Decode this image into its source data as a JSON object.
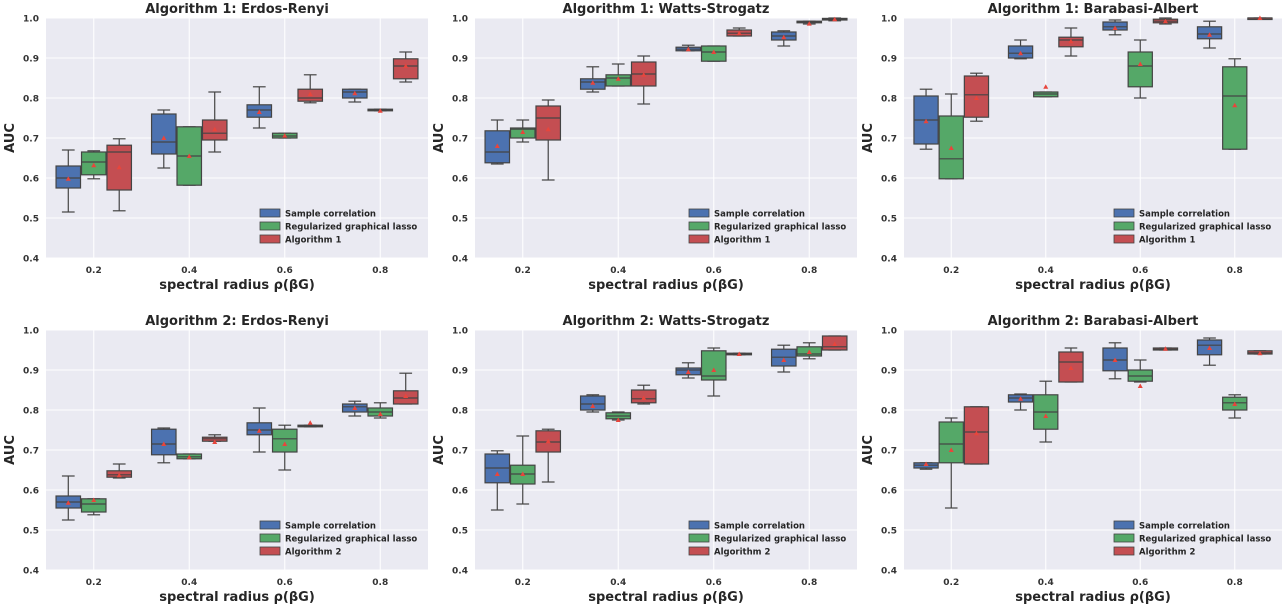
{
  "figure": {
    "colors": {
      "plot_bg": "#EAEAF2",
      "grid": "#FFFFFF",
      "mean_marker": "#E8453C",
      "whisker": "#4D4D4D",
      "series": [
        "#4C72B0",
        "#55A868",
        "#C44E52"
      ]
    }
  },
  "chart_data": [
    {
      "type": "box",
      "title": "Algorithm 1: Erdos-Renyi",
      "xlabel": "spectral radius ρ(βG)",
      "ylabel": "AUC",
      "categories": [
        "0.2",
        "0.4",
        "0.6",
        "0.8"
      ],
      "ylim": [
        0.4,
        1.0
      ],
      "yticks": [
        "0.4",
        "0.5",
        "0.6",
        "0.7",
        "0.8",
        "0.9",
        "1.0"
      ],
      "grid": true,
      "legend_position": "bottom-right",
      "series": [
        {
          "name": "Sample correlation",
          "boxes": [
            {
              "min": 0.515,
              "q1": 0.575,
              "median": 0.6,
              "q3": 0.63,
              "max": 0.67,
              "mean": 0.598
            },
            {
              "min": 0.625,
              "q1": 0.66,
              "median": 0.69,
              "q3": 0.76,
              "max": 0.77,
              "mean": 0.7
            },
            {
              "min": 0.725,
              "q1": 0.752,
              "median": 0.77,
              "q3": 0.783,
              "max": 0.828,
              "mean": 0.765
            },
            {
              "min": 0.79,
              "q1": 0.8,
              "median": 0.815,
              "q3": 0.822,
              "max": 0.822,
              "mean": 0.812
            }
          ]
        },
        {
          "name": "Regularized graphical lasso",
          "boxes": [
            {
              "min": 0.598,
              "q1": 0.608,
              "median": 0.64,
              "q3": 0.665,
              "max": 0.668,
              "mean": 0.632
            },
            {
              "min": 0.582,
              "q1": 0.582,
              "median": 0.655,
              "q3": 0.728,
              "max": 0.728,
              "mean": 0.655
            },
            {
              "min": 0.7,
              "q1": 0.7,
              "median": 0.705,
              "q3": 0.712,
              "max": 0.712,
              "mean": 0.706
            },
            {
              "min": 0.768,
              "q1": 0.768,
              "median": 0.77,
              "q3": 0.772,
              "max": 0.772,
              "mean": 0.768
            }
          ]
        },
        {
          "name": "Algorithm 1",
          "boxes": [
            {
              "min": 0.518,
              "q1": 0.57,
              "median": 0.665,
              "q3": 0.682,
              "max": 0.698,
              "mean": 0.627
            },
            {
              "min": 0.665,
              "q1": 0.695,
              "median": 0.712,
              "q3": 0.745,
              "max": 0.815,
              "mean": 0.722
            },
            {
              "min": 0.788,
              "q1": 0.792,
              "median": 0.8,
              "q3": 0.822,
              "max": 0.858,
              "mean": 0.81
            },
            {
              "min": 0.84,
              "q1": 0.848,
              "median": 0.88,
              "q3": 0.898,
              "max": 0.915,
              "mean": 0.88
            }
          ]
        }
      ]
    },
    {
      "type": "box",
      "title": "Algorithm 1: Watts-Strogatz",
      "xlabel": "spectral radius ρ(βG)",
      "ylabel": "AUC",
      "categories": [
        "0.2",
        "0.4",
        "0.6",
        "0.8"
      ],
      "ylim": [
        0.4,
        1.0
      ],
      "yticks": [
        "0.4",
        "0.5",
        "0.6",
        "0.7",
        "0.8",
        "0.9",
        "1.0"
      ],
      "grid": true,
      "legend_position": "bottom-right",
      "series": [
        {
          "name": "Sample correlation",
          "boxes": [
            {
              "min": 0.635,
              "q1": 0.638,
              "median": 0.665,
              "q3": 0.718,
              "max": 0.745,
              "mean": 0.68
            },
            {
              "min": 0.815,
              "q1": 0.822,
              "median": 0.84,
              "q3": 0.848,
              "max": 0.878,
              "mean": 0.838
            },
            {
              "min": 0.918,
              "q1": 0.918,
              "median": 0.922,
              "q3": 0.927,
              "max": 0.932,
              "mean": 0.922
            },
            {
              "min": 0.93,
              "q1": 0.945,
              "median": 0.955,
              "q3": 0.965,
              "max": 0.968,
              "mean": 0.952
            }
          ]
        },
        {
          "name": "Regularized graphical lasso",
          "boxes": [
            {
              "min": 0.69,
              "q1": 0.7,
              "median": 0.722,
              "q3": 0.725,
              "max": 0.745,
              "mean": 0.715
            },
            {
              "min": 0.83,
              "q1": 0.83,
              "median": 0.85,
              "q3": 0.858,
              "max": 0.885,
              "mean": 0.848
            },
            {
              "min": 0.892,
              "q1": 0.892,
              "median": 0.915,
              "q3": 0.93,
              "max": 0.93,
              "mean": 0.915
            },
            {
              "min": 0.985,
              "q1": 0.988,
              "median": 0.99,
              "q3": 0.992,
              "max": 0.992,
              "mean": 0.986
            }
          ]
        },
        {
          "name": "Algorithm 1",
          "boxes": [
            {
              "min": 0.595,
              "q1": 0.695,
              "median": 0.75,
              "q3": 0.78,
              "max": 0.795,
              "mean": 0.722
            },
            {
              "min": 0.785,
              "q1": 0.83,
              "median": 0.86,
              "q3": 0.89,
              "max": 0.905,
              "mean": 0.858
            },
            {
              "min": 0.955,
              "q1": 0.955,
              "median": 0.962,
              "q3": 0.97,
              "max": 0.975,
              "mean": 0.962
            },
            {
              "min": 0.993,
              "q1": 0.995,
              "median": 0.997,
              "q3": 0.999,
              "max": 1.0,
              "mean": 0.997
            }
          ]
        }
      ]
    },
    {
      "type": "box",
      "title": "Algorithm 1: Barabasi-Albert",
      "xlabel": "spectral radius ρ(βG)",
      "ylabel": "AUC",
      "categories": [
        "0.2",
        "0.4",
        "0.6",
        "0.8"
      ],
      "ylim": [
        0.4,
        1.0
      ],
      "yticks": [
        "0.4",
        "0.5",
        "0.6",
        "0.7",
        "0.8",
        "0.9",
        "1.0"
      ],
      "grid": true,
      "legend_position": "bottom-right",
      "series": [
        {
          "name": "Sample correlation",
          "boxes": [
            {
              "min": 0.672,
              "q1": 0.685,
              "median": 0.745,
              "q3": 0.805,
              "max": 0.822,
              "mean": 0.742
            },
            {
              "min": 0.898,
              "q1": 0.9,
              "median": 0.912,
              "q3": 0.93,
              "max": 0.945,
              "mean": 0.912
            },
            {
              "min": 0.958,
              "q1": 0.97,
              "median": 0.978,
              "q3": 0.99,
              "max": 0.995,
              "mean": 0.975
            },
            {
              "min": 0.925,
              "q1": 0.948,
              "median": 0.96,
              "q3": 0.978,
              "max": 0.992,
              "mean": 0.958
            }
          ]
        },
        {
          "name": "Regularized graphical lasso",
          "boxes": [
            {
              "min": 0.598,
              "q1": 0.598,
              "median": 0.648,
              "q3": 0.755,
              "max": 0.81,
              "mean": 0.675
            },
            {
              "min": 0.803,
              "q1": 0.803,
              "median": 0.81,
              "q3": 0.815,
              "max": 0.815,
              "mean": 0.828
            },
            {
              "min": 0.8,
              "q1": 0.828,
              "median": 0.88,
              "q3": 0.915,
              "max": 0.945,
              "mean": 0.885
            },
            {
              "min": 0.672,
              "q1": 0.672,
              "median": 0.805,
              "q3": 0.878,
              "max": 0.898,
              "mean": 0.782
            }
          ]
        },
        {
          "name": "Algorithm 1",
          "boxes": [
            {
              "min": 0.742,
              "q1": 0.752,
              "median": 0.808,
              "q3": 0.855,
              "max": 0.862,
              "mean": 0.8
            },
            {
              "min": 0.905,
              "q1": 0.928,
              "median": 0.945,
              "q3": 0.952,
              "max": 0.975,
              "mean": 0.942
            },
            {
              "min": 0.985,
              "q1": 0.988,
              "median": 0.992,
              "q3": 0.997,
              "max": 1.0,
              "mean": 0.992
            },
            {
              "min": 0.998,
              "q1": 0.999,
              "median": 1.0,
              "q3": 1.0,
              "max": 1.0,
              "mean": 1.0
            }
          ]
        }
      ]
    },
    {
      "type": "box",
      "title": "Algorithm 2: Erdos-Renyi",
      "xlabel": "spectral radius ρ(βG)",
      "ylabel": "AUC",
      "categories": [
        "0.2",
        "0.4",
        "0.6",
        "0.8"
      ],
      "ylim": [
        0.4,
        1.0
      ],
      "yticks": [
        "0.4",
        "0.5",
        "0.6",
        "0.7",
        "0.8",
        "0.9",
        "1.0"
      ],
      "grid": true,
      "legend_position": "bottom-right",
      "series": [
        {
          "name": "Sample correlation",
          "boxes": [
            {
              "min": 0.525,
              "q1": 0.555,
              "median": 0.57,
              "q3": 0.585,
              "max": 0.635,
              "mean": 0.568
            },
            {
              "min": 0.668,
              "q1": 0.688,
              "median": 0.715,
              "q3": 0.752,
              "max": 0.755,
              "mean": 0.715
            },
            {
              "min": 0.695,
              "q1": 0.738,
              "median": 0.75,
              "q3": 0.768,
              "max": 0.805,
              "mean": 0.748
            },
            {
              "min": 0.785,
              "q1": 0.795,
              "median": 0.808,
              "q3": 0.815,
              "max": 0.822,
              "mean": 0.805
            }
          ]
        },
        {
          "name": "Regularized graphical lasso",
          "boxes": [
            {
              "min": 0.538,
              "q1": 0.545,
              "median": 0.565,
              "q3": 0.578,
              "max": 0.578,
              "mean": 0.575
            },
            {
              "min": 0.678,
              "q1": 0.678,
              "median": 0.683,
              "q3": 0.69,
              "max": 0.69,
              "mean": 0.682
            },
            {
              "min": 0.65,
              "q1": 0.695,
              "median": 0.728,
              "q3": 0.752,
              "max": 0.762,
              "mean": 0.715
            },
            {
              "min": 0.78,
              "q1": 0.785,
              "median": 0.795,
              "q3": 0.805,
              "max": 0.818,
              "mean": 0.79
            }
          ]
        },
        {
          "name": "Algorithm 2",
          "boxes": [
            {
              "min": 0.63,
              "q1": 0.632,
              "median": 0.638,
              "q3": 0.648,
              "max": 0.665,
              "mean": 0.637
            },
            {
              "min": 0.722,
              "q1": 0.722,
              "median": 0.728,
              "q3": 0.732,
              "max": 0.738,
              "mean": 0.72
            },
            {
              "min": 0.758,
              "q1": 0.758,
              "median": 0.76,
              "q3": 0.762,
              "max": 0.762,
              "mean": 0.768
            },
            {
              "min": 0.815,
              "q1": 0.815,
              "median": 0.83,
              "q3": 0.848,
              "max": 0.892,
              "mean": 0.835
            }
          ]
        }
      ]
    },
    {
      "type": "box",
      "title": "Algorithm 2: Watts-Strogatz",
      "xlabel": "spectral radius ρ(βG)",
      "ylabel": "AUC",
      "categories": [
        "0.2",
        "0.4",
        "0.6",
        "0.8"
      ],
      "ylim": [
        0.4,
        1.0
      ],
      "yticks": [
        "0.4",
        "0.5",
        "0.6",
        "0.7",
        "0.8",
        "0.9",
        "1.0"
      ],
      "grid": true,
      "legend_position": "bottom-right",
      "series": [
        {
          "name": "Sample correlation",
          "boxes": [
            {
              "min": 0.55,
              "q1": 0.618,
              "median": 0.655,
              "q3": 0.69,
              "max": 0.698,
              "mean": 0.64
            },
            {
              "min": 0.795,
              "q1": 0.8,
              "median": 0.815,
              "q3": 0.835,
              "max": 0.838,
              "mean": 0.81
            },
            {
              "min": 0.88,
              "q1": 0.888,
              "median": 0.9,
              "q3": 0.905,
              "max": 0.918,
              "mean": 0.895
            },
            {
              "min": 0.895,
              "q1": 0.91,
              "median": 0.932,
              "q3": 0.952,
              "max": 0.962,
              "mean": 0.925
            }
          ]
        },
        {
          "name": "Regularized graphical lasso",
          "boxes": [
            {
              "min": 0.565,
              "q1": 0.615,
              "median": 0.64,
              "q3": 0.662,
              "max": 0.735,
              "mean": 0.64
            },
            {
              "min": 0.775,
              "q1": 0.778,
              "median": 0.785,
              "q3": 0.793,
              "max": 0.795,
              "mean": 0.775
            },
            {
              "min": 0.835,
              "q1": 0.875,
              "median": 0.885,
              "q3": 0.948,
              "max": 0.955,
              "mean": 0.9
            },
            {
              "min": 0.928,
              "q1": 0.935,
              "median": 0.94,
              "q3": 0.958,
              "max": 0.968,
              "mean": 0.945
            }
          ]
        },
        {
          "name": "Algorithm 2",
          "boxes": [
            {
              "min": 0.62,
              "q1": 0.695,
              "median": 0.72,
              "q3": 0.748,
              "max": 0.752,
              "mean": 0.722
            },
            {
              "min": 0.815,
              "q1": 0.818,
              "median": 0.828,
              "q3": 0.85,
              "max": 0.862,
              "mean": 0.83
            },
            {
              "min": 0.938,
              "q1": 0.938,
              "median": 0.94,
              "q3": 0.942,
              "max": 0.942,
              "mean": 0.94
            },
            {
              "min": 0.95,
              "q1": 0.95,
              "median": 0.958,
              "q3": 0.985,
              "max": 0.985,
              "mean": 0.965
            }
          ]
        }
      ]
    },
    {
      "type": "box",
      "title": "Algorithm 2: Barabasi-Albert",
      "xlabel": "spectral radius ρ(βG)",
      "ylabel": "AUC",
      "categories": [
        "0.2",
        "0.4",
        "0.6",
        "0.8"
      ],
      "ylim": [
        0.4,
        1.0
      ],
      "yticks": [
        "0.4",
        "0.5",
        "0.6",
        "0.7",
        "0.8",
        "0.9",
        "1.0"
      ],
      "grid": true,
      "legend_position": "bottom-right",
      "series": [
        {
          "name": "Sample correlation",
          "boxes": [
            {
              "min": 0.652,
              "q1": 0.655,
              "median": 0.662,
              "q3": 0.668,
              "max": 0.668,
              "mean": 0.665
            },
            {
              "min": 0.8,
              "q1": 0.82,
              "median": 0.83,
              "q3": 0.838,
              "max": 0.84,
              "mean": 0.828
            },
            {
              "min": 0.878,
              "q1": 0.898,
              "median": 0.925,
              "q3": 0.955,
              "max": 0.968,
              "mean": 0.925
            },
            {
              "min": 0.912,
              "q1": 0.938,
              "median": 0.962,
              "q3": 0.975,
              "max": 0.98,
              "mean": 0.955
            }
          ]
        },
        {
          "name": "Regularized graphical lasso",
          "boxes": [
            {
              "min": 0.555,
              "q1": 0.668,
              "median": 0.715,
              "q3": 0.77,
              "max": 0.78,
              "mean": 0.7
            },
            {
              "min": 0.72,
              "q1": 0.752,
              "median": 0.795,
              "q3": 0.838,
              "max": 0.872,
              "mean": 0.785
            },
            {
              "min": 0.87,
              "q1": 0.872,
              "median": 0.885,
              "q3": 0.9,
              "max": 0.925,
              "mean": 0.86
            },
            {
              "min": 0.78,
              "q1": 0.8,
              "median": 0.818,
              "q3": 0.832,
              "max": 0.838,
              "mean": 0.815
            }
          ]
        },
        {
          "name": "Algorithm 2",
          "boxes": [
            {
              "min": 0.665,
              "q1": 0.665,
              "median": 0.745,
              "q3": 0.808,
              "max": 0.808,
              "mean": 0.742
            },
            {
              "min": 0.87,
              "q1": 0.87,
              "median": 0.92,
              "q3": 0.945,
              "max": 0.955,
              "mean": 0.905
            },
            {
              "min": 0.95,
              "q1": 0.95,
              "median": 0.952,
              "q3": 0.955,
              "max": 0.955,
              "mean": 0.953
            },
            {
              "min": 0.94,
              "q1": 0.94,
              "median": 0.943,
              "q3": 0.948,
              "max": 0.948,
              "mean": 0.942
            }
          ]
        }
      ]
    }
  ]
}
